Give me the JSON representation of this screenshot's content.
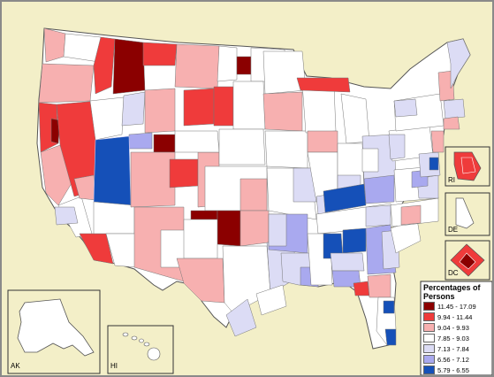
{
  "colors": {
    "background": "#f3efc8",
    "class1": "#8b0000",
    "class2": "#ef3b3b",
    "class3": "#f7b0b0",
    "class4": "#ffffff",
    "class5": "#dcdcf5",
    "class6": "#a9a9ef",
    "class7": "#1550b8",
    "border": "#6b6b6b"
  },
  "legend": {
    "title": "Percentages of Persons",
    "classes": [
      {
        "label": "11.45 - 17.09",
        "color": "#8b0000"
      },
      {
        "label": "9.94 - 11.44",
        "color": "#ef3b3b"
      },
      {
        "label": "9.04 - 9.93",
        "color": "#f7b0b0"
      },
      {
        "label": "7.85 - 9.03",
        "color": "#ffffff"
      },
      {
        "label": "7.13 - 7.84",
        "color": "#dcdcf5"
      },
      {
        "label": "6.56 - 7.12",
        "color": "#a9a9ef"
      },
      {
        "label": "5.79 - 6.55",
        "color": "#1550b8"
      }
    ]
  },
  "insets": {
    "alaska": "AK",
    "hawaii": "HI",
    "rhode_island": "RI",
    "delaware": "DE",
    "dc": "DC"
  }
}
